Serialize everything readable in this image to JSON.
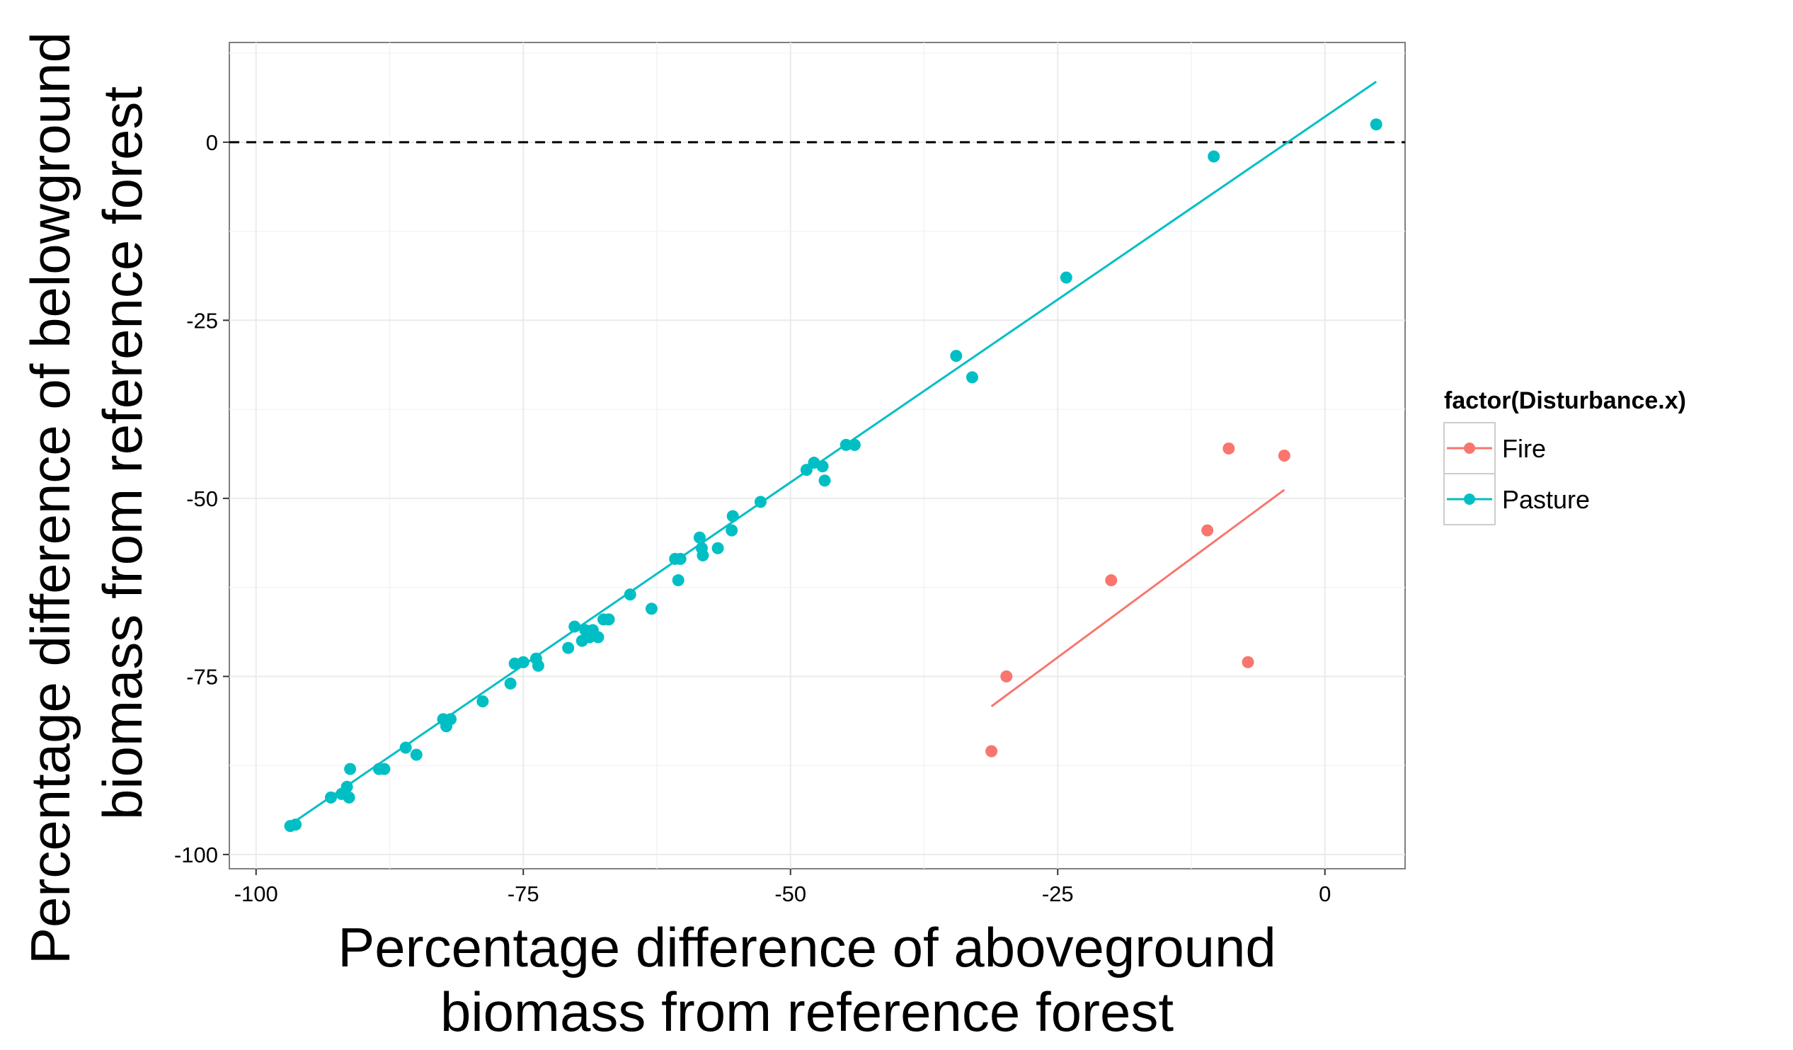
{
  "chart_data": {
    "type": "scatter",
    "xlabel_lines": [
      "Percentage difference of aboveground",
      "biomass from reference forest"
    ],
    "ylabel_lines": [
      "Percentage difference of belowground",
      "biomass from reference forest"
    ],
    "xlim": [
      -102.5,
      7.5
    ],
    "ylim": [
      -102,
      14
    ],
    "x_ticks": [
      -100,
      -75,
      -50,
      -25,
      0
    ],
    "y_ticks": [
      -100,
      -75,
      -50,
      -25,
      0
    ],
    "x_tick_labels": [
      "-100",
      "-75",
      "-50",
      "-25",
      "0"
    ],
    "y_tick_labels": [
      "-100",
      "-75",
      "-50",
      "-25",
      "0"
    ],
    "grid": true,
    "reference_line": {
      "y": 0,
      "style": "dashed"
    },
    "legend": {
      "title": "factor(Disturbance.x)",
      "position": "right",
      "entries": [
        "Fire",
        "Pasture"
      ]
    },
    "series": [
      {
        "name": "Fire",
        "color": "#F8766D",
        "points": [
          [
            -31.2,
            -85.5
          ],
          [
            -29.8,
            -75.0
          ],
          [
            -20.0,
            -61.5
          ],
          [
            -11.0,
            -54.5
          ],
          [
            -9.0,
            -43.0
          ],
          [
            -7.2,
            -73.0
          ],
          [
            -3.8,
            -44.0
          ]
        ],
        "fit": [
          [
            -31.2,
            -79.2
          ],
          [
            -3.8,
            -48.8
          ]
        ]
      },
      {
        "name": "Pasture",
        "color": "#00BFC4",
        "points": [
          [
            -96.8,
            -96.0
          ],
          [
            -96.3,
            -95.8
          ],
          [
            -93.0,
            -92.0
          ],
          [
            -92.0,
            -91.5
          ],
          [
            -91.5,
            -90.5
          ],
          [
            -91.3,
            -92.0
          ],
          [
            -91.2,
            -88.0
          ],
          [
            -88.5,
            -88.0
          ],
          [
            -88.0,
            -88.0
          ],
          [
            -86.0,
            -85.0
          ],
          [
            -85.0,
            -86.0
          ],
          [
            -82.5,
            -81.0
          ],
          [
            -82.2,
            -82.0
          ],
          [
            -81.8,
            -81.0
          ],
          [
            -78.8,
            -78.5
          ],
          [
            -76.2,
            -76.0
          ],
          [
            -75.8,
            -73.2
          ],
          [
            -75.0,
            -73.0
          ],
          [
            -73.8,
            -72.5
          ],
          [
            -73.6,
            -73.5
          ],
          [
            -70.8,
            -71.0
          ],
          [
            -70.2,
            -68.0
          ],
          [
            -69.5,
            -70.0
          ],
          [
            -69.2,
            -68.5
          ],
          [
            -68.8,
            -69.5
          ],
          [
            -68.5,
            -68.5
          ],
          [
            -68.0,
            -69.5
          ],
          [
            -67.5,
            -67.0
          ],
          [
            -67.0,
            -67.0
          ],
          [
            -65.0,
            -63.5
          ],
          [
            -63.0,
            -65.5
          ],
          [
            -60.8,
            -58.5
          ],
          [
            -60.5,
            -61.5
          ],
          [
            -60.3,
            -58.5
          ],
          [
            -58.5,
            -55.5
          ],
          [
            -58.3,
            -57.0
          ],
          [
            -58.2,
            -58.0
          ],
          [
            -56.8,
            -57.0
          ],
          [
            -55.5,
            -54.5
          ],
          [
            -55.4,
            -52.5
          ],
          [
            -52.8,
            -50.5
          ],
          [
            -48.5,
            -46.0
          ],
          [
            -47.8,
            -45.0
          ],
          [
            -47.0,
            -45.5
          ],
          [
            -46.8,
            -47.5
          ],
          [
            -44.8,
            -42.5
          ],
          [
            -44.0,
            -42.5
          ],
          [
            -34.5,
            -30.0
          ],
          [
            -33.0,
            -33.0
          ],
          [
            -24.2,
            -19.0
          ],
          [
            -10.4,
            -2.0
          ],
          [
            4.8,
            2.5
          ]
        ],
        "fit": [
          [
            -97.0,
            -96.0
          ],
          [
            4.8,
            8.5
          ]
        ]
      }
    ]
  }
}
